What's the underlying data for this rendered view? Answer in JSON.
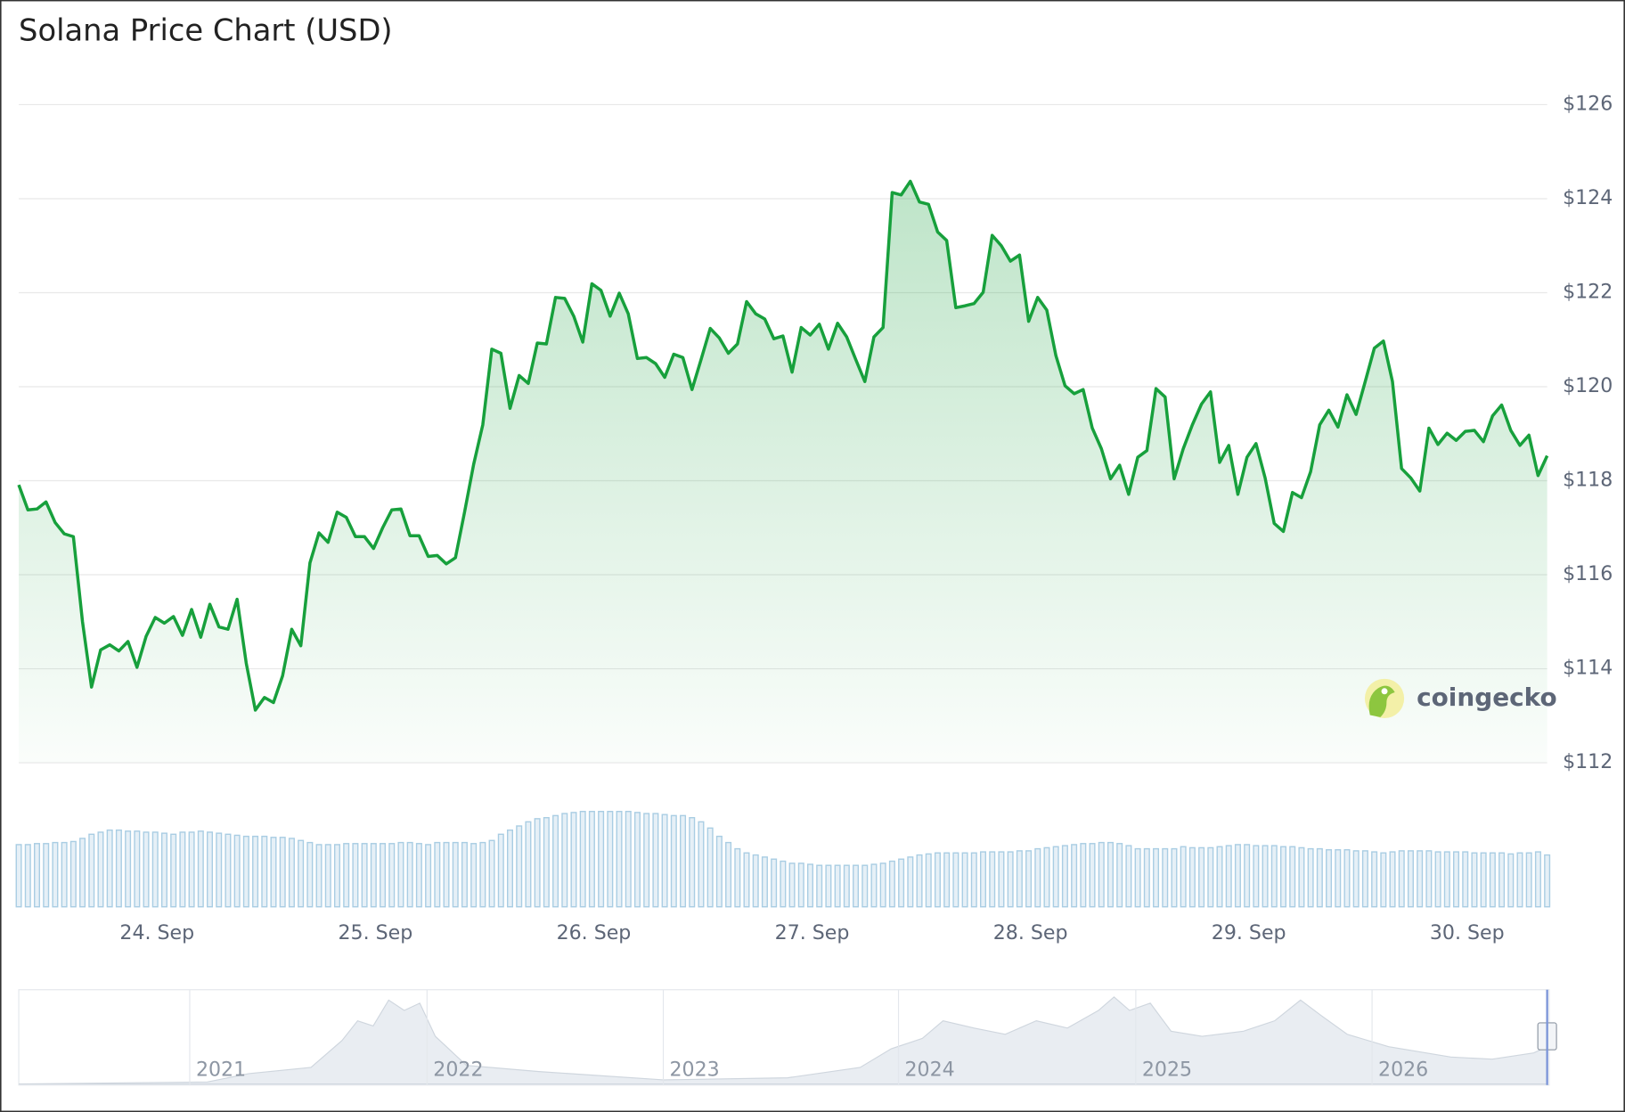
{
  "chart_data": {
    "type": "line",
    "title": "Solana Price Chart (USD)",
    "watermark": "coingecko",
    "color": "#17a03c",
    "grid": true,
    "ylim": [
      112,
      126
    ],
    "yticks": [
      {
        "value": 112,
        "label": "$112"
      },
      {
        "value": 114,
        "label": "$114"
      },
      {
        "value": 116,
        "label": "$116"
      },
      {
        "value": 118,
        "label": "$118"
      },
      {
        "value": 120,
        "label": "$120"
      },
      {
        "value": 122,
        "label": "$122"
      },
      {
        "value": 124,
        "label": "$124"
      },
      {
        "value": 126,
        "label": "$126"
      }
    ],
    "xlim": [
      0,
      168
    ],
    "xticks": [
      {
        "value": 15.2,
        "label": "24. Sep"
      },
      {
        "value": 39.2,
        "label": "25. Sep"
      },
      {
        "value": 63.2,
        "label": "26. Sep"
      },
      {
        "value": 87.2,
        "label": "27. Sep"
      },
      {
        "value": 111.2,
        "label": "28. Sep"
      },
      {
        "value": 135.2,
        "label": "29. Sep"
      },
      {
        "value": 159.2,
        "label": "30. Sep"
      }
    ],
    "values": [
      117.91,
      117.38,
      117.4,
      117.55,
      117.11,
      116.87,
      116.81,
      115.0,
      113.61,
      114.4,
      114.51,
      114.38,
      114.58,
      114.03,
      114.69,
      115.09,
      114.97,
      115.11,
      114.71,
      115.26,
      114.67,
      115.37,
      114.89,
      114.84,
      115.48,
      114.12,
      113.12,
      113.39,
      113.28,
      113.85,
      114.84,
      114.49,
      116.25,
      116.89,
      116.69,
      117.33,
      117.22,
      116.81,
      116.81,
      116.56,
      117.0,
      117.38,
      117.4,
      116.83,
      116.83,
      116.39,
      116.41,
      116.23,
      116.36,
      117.33,
      118.35,
      119.19,
      120.8,
      120.71,
      119.54,
      120.24,
      120.07,
      120.93,
      120.91,
      121.9,
      121.88,
      121.5,
      120.95,
      122.19,
      122.05,
      121.5,
      121.99,
      121.55,
      120.6,
      120.62,
      120.49,
      120.2,
      120.69,
      120.62,
      119.94,
      120.58,
      121.24,
      121.04,
      120.71,
      120.91,
      121.81,
      121.55,
      121.44,
      121.02,
      121.08,
      120.31,
      121.26,
      121.1,
      121.33,
      120.8,
      121.35,
      121.06,
      120.58,
      120.11,
      121.06,
      121.26,
      124.13,
      124.08,
      124.37,
      123.93,
      123.88,
      123.29,
      123.11,
      121.68,
      121.72,
      121.77,
      122.01,
      123.22,
      123.0,
      122.67,
      122.8,
      121.39,
      121.9,
      121.63,
      120.66,
      120.02,
      119.85,
      119.94,
      119.12,
      118.68,
      118.04,
      118.33,
      117.71,
      118.5,
      118.64,
      119.96,
      119.78,
      118.04,
      118.68,
      119.19,
      119.63,
      119.89,
      118.39,
      118.75,
      117.71,
      118.5,
      118.79,
      118.06,
      117.09,
      116.92,
      117.75,
      117.64,
      118.19,
      119.19,
      119.5,
      119.14,
      119.83,
      119.41,
      120.11,
      120.82,
      120.97,
      120.11,
      118.26,
      118.06,
      117.78,
      119.12,
      118.77,
      119.01,
      118.86,
      119.05,
      119.07,
      118.83,
      119.38,
      119.61,
      119.07,
      118.75,
      118.97,
      118.11,
      118.53
    ],
    "volume": {
      "color": "#a9cde3",
      "ylim": [
        0,
        100
      ],
      "values": [
        60,
        60,
        61,
        61,
        62,
        62,
        63,
        66,
        70,
        72,
        74,
        74,
        73,
        73,
        72,
        72,
        71,
        70,
        72,
        72,
        73,
        72,
        71,
        70,
        69,
        68,
        68,
        68,
        67,
        67,
        66,
        64,
        62,
        60,
        60,
        60,
        61,
        61,
        61,
        61,
        61,
        61,
        62,
        62,
        61,
        60,
        62,
        62,
        62,
        62,
        61,
        62,
        64,
        70,
        74,
        78,
        82,
        85,
        86,
        88,
        90,
        91,
        92,
        92,
        92,
        92,
        92,
        92,
        91,
        90,
        90,
        89,
        88,
        88,
        86,
        82,
        76,
        68,
        62,
        56,
        52,
        50,
        48,
        46,
        44,
        42,
        42,
        41,
        40,
        40,
        40,
        40,
        40,
        40,
        41,
        42,
        44,
        46,
        48,
        50,
        51,
        52,
        52,
        52,
        52,
        52,
        53,
        53,
        53,
        53,
        54,
        54,
        56,
        57,
        58,
        59,
        60,
        61,
        61,
        62,
        62,
        61,
        59,
        56,
        56,
        56,
        56,
        56,
        58,
        57,
        57,
        57,
        58,
        59,
        60,
        60,
        59,
        59,
        59,
        58,
        58,
        57,
        56,
        56,
        55,
        55,
        55,
        54,
        54,
        53,
        52,
        53,
        54,
        54,
        54,
        54,
        53,
        53,
        53,
        53,
        52,
        52,
        52,
        52,
        51,
        52,
        52,
        53,
        50
      ]
    },
    "navigator_labels": [
      "2021",
      "2022",
      "2023",
      "2024",
      "2025",
      "2026"
    ]
  }
}
